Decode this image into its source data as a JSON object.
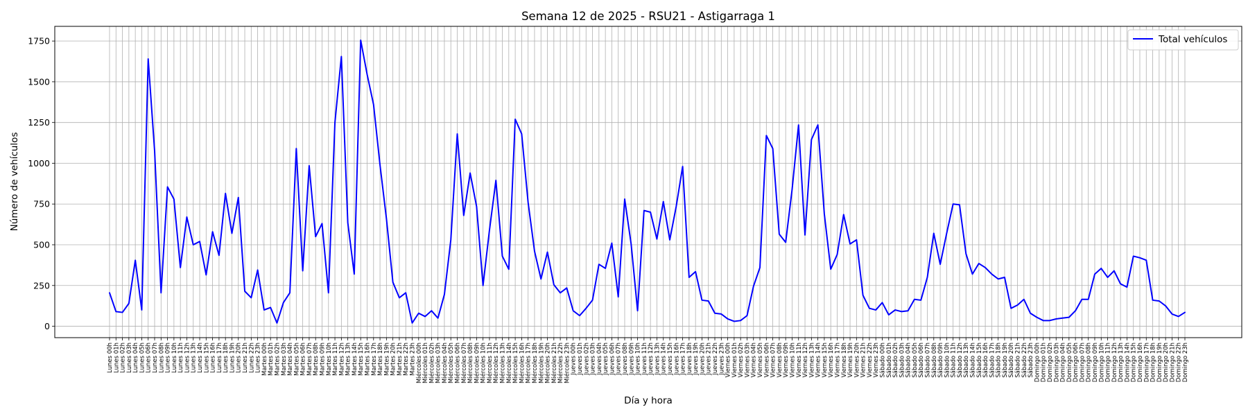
{
  "chart_data": {
    "type": "line",
    "title": "Semana 12 de 2025 - RSU21 - Astigarraga 1",
    "xlabel": "Día y hora",
    "ylabel": "Número de vehículos",
    "ylim": [
      -70,
      1840
    ],
    "yticks": [
      0,
      250,
      500,
      750,
      1000,
      1250,
      1500,
      1750
    ],
    "grid": true,
    "legend_position": "top-right",
    "days": [
      "Lunes",
      "Martes",
      "Miércoles",
      "Jueves",
      "Viernes",
      "Sábado",
      "Domingo"
    ],
    "series": [
      {
        "name": "Total vehículos",
        "color": "#0000ff",
        "values": [
          205,
          90,
          85,
          140,
          405,
          100,
          1640,
          1075,
          205,
          855,
          780,
          360,
          670,
          500,
          520,
          315,
          580,
          435,
          815,
          570,
          790,
          215,
          175,
          345,
          100,
          115,
          20,
          145,
          205,
          1090,
          340,
          985,
          550,
          630,
          205,
          1250,
          1655,
          635,
          320,
          1755,
          1545,
          1360,
          990,
          660,
          270,
          175,
          205,
          20,
          80,
          60,
          95,
          50,
          195,
          530,
          1180,
          680,
          940,
          735,
          250,
          590,
          895,
          430,
          350,
          1270,
          1180,
          760,
          460,
          290,
          455,
          255,
          205,
          235,
          95,
          65,
          110,
          160,
          380,
          355,
          510,
          180,
          780,
          505,
          95,
          710,
          700,
          535,
          765,
          530,
          735,
          980,
          300,
          335,
          160,
          155,
          80,
          75,
          45,
          30,
          35,
          65,
          245,
          360,
          1170,
          1090,
          565,
          515,
          840,
          1235,
          560,
          1145,
          1235,
          690,
          350,
          440,
          685,
          505,
          530,
          190,
          110,
          100,
          145,
          70,
          100,
          90,
          95,
          165,
          160,
          300,
          570,
          380,
          570,
          750,
          745,
          445,
          320,
          385,
          360,
          320,
          290,
          300,
          110,
          130,
          165,
          80,
          55,
          35,
          35,
          45,
          50,
          55,
          95,
          165,
          165,
          320,
          355,
          300,
          340,
          260,
          240,
          430,
          420,
          405,
          160,
          155,
          125,
          75,
          60,
          85
        ]
      }
    ]
  }
}
